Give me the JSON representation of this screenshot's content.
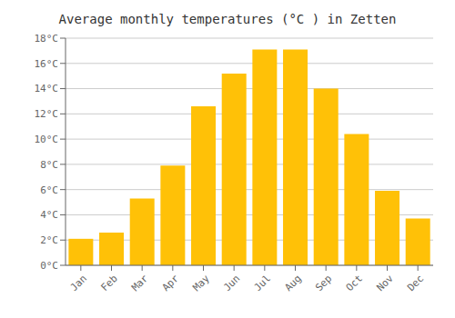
{
  "chart_data": {
    "type": "bar",
    "title": "Average monthly temperatures (°C ) in Zetten",
    "categories": [
      "Jan",
      "Feb",
      "Mar",
      "Apr",
      "May",
      "Jun",
      "Jul",
      "Aug",
      "Sep",
      "Oct",
      "Nov",
      "Dec"
    ],
    "values": [
      2.1,
      2.6,
      5.3,
      7.9,
      12.6,
      15.2,
      17.1,
      17.1,
      14.0,
      10.4,
      5.9,
      3.7
    ],
    "color": "#FFC107",
    "ylim": [
      0,
      18
    ],
    "yticks": [
      {
        "value": 0,
        "label": "0°C"
      },
      {
        "value": 2,
        "label": "2°C"
      },
      {
        "value": 4,
        "label": "4°C"
      },
      {
        "value": 6,
        "label": "6°C"
      },
      {
        "value": 8,
        "label": "8°C"
      },
      {
        "value": 10,
        "label": "10°C"
      },
      {
        "value": 12,
        "label": "12°C"
      },
      {
        "value": 14,
        "label": "14°C"
      },
      {
        "value": 16,
        "label": "16°C"
      },
      {
        "value": 18,
        "label": "18°C"
      }
    ],
    "grid": true
  }
}
